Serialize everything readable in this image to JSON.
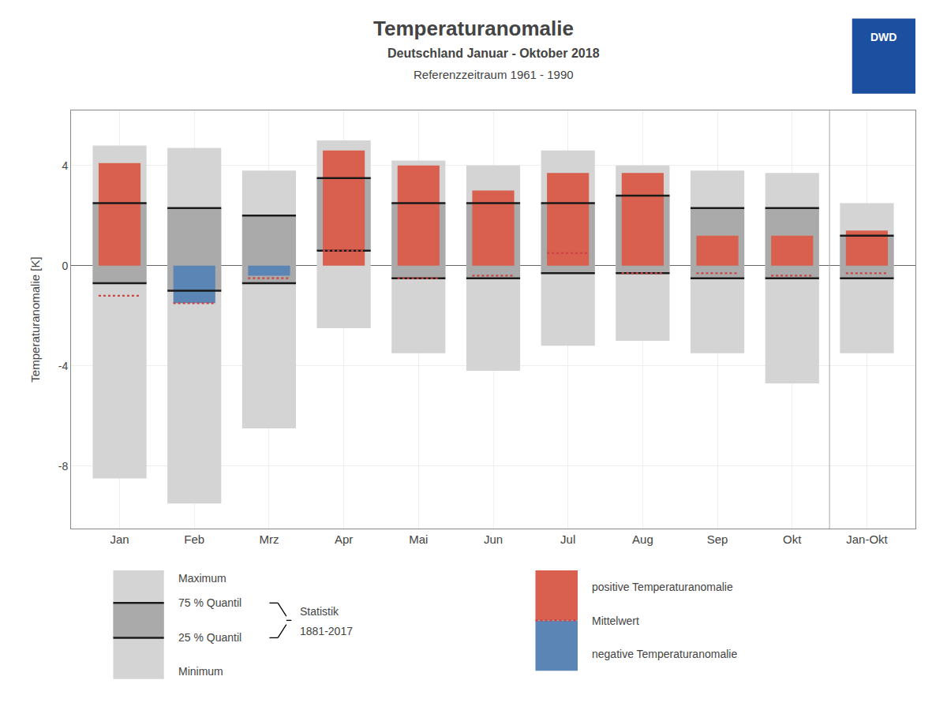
{
  "chart_data": {
    "type": "bar",
    "title": "Temperaturanomalie",
    "subtitle": [
      "Deutschland Januar - Oktober 2018",
      "Referenzzeitraum 1961 - 1990"
    ],
    "ylabel": "Temperaturanomalie [K]",
    "categories": [
      "Jan",
      "Feb",
      "Mrz",
      "Apr",
      "Mai",
      "Jun",
      "Jul",
      "Aug",
      "Sep",
      "Okt",
      "Jan-Okt"
    ],
    "series": [
      {
        "name": "Maximum",
        "color": "#d4d4d4",
        "values": [
          4.8,
          4.7,
          3.8,
          5.0,
          4.2,
          4.0,
          4.6,
          4.0,
          3.8,
          3.7,
          2.5
        ]
      },
      {
        "name": "75 % Quantil",
        "color": "#aaaaaa",
        "values": [
          2.5,
          2.3,
          2.0,
          3.5,
          2.5,
          2.5,
          2.5,
          2.8,
          2.3,
          2.3,
          1.2
        ]
      },
      {
        "name": "25 % Quantil",
        "color": "#aaaaaa",
        "values": [
          -0.7,
          -1.0,
          -0.7,
          0.6,
          -0.5,
          -0.5,
          -0.3,
          -0.3,
          -0.5,
          -0.5,
          -0.5
        ]
      },
      {
        "name": "Minimum",
        "color": "#d4d4d4",
        "values": [
          -8.5,
          -9.5,
          -6.5,
          -2.5,
          -3.5,
          -4.2,
          -3.2,
          -3.0,
          -3.5,
          -4.7,
          -3.5
        ]
      },
      {
        "name": "positive Temperaturanomalie",
        "color": "#d9604e",
        "values": [
          4.1,
          null,
          null,
          4.6,
          4.0,
          3.0,
          3.7,
          3.7,
          1.2,
          1.2,
          1.4
        ]
      },
      {
        "name": "negative Temperaturanomalie",
        "color": "#5b85b5",
        "values": [
          null,
          -1.5,
          -0.4,
          null,
          null,
          null,
          null,
          null,
          null,
          null,
          null
        ]
      },
      {
        "name": "Mittelwert",
        "color": "#cc4444",
        "type": "line",
        "line_style": "dotted",
        "values": [
          -1.2,
          -1.5,
          -0.5,
          0.6,
          -0.5,
          -0.4,
          0.5,
          -0.3,
          -0.3,
          -0.4,
          -0.3
        ]
      }
    ],
    "ylim": [
      -10.5,
      6.2
    ],
    "yticks": [
      -8,
      -4,
      0,
      4
    ],
    "grid": true,
    "legend": "bottom",
    "annotations": [
      "Statistik",
      "1881-2017",
      "DWD"
    ]
  }
}
